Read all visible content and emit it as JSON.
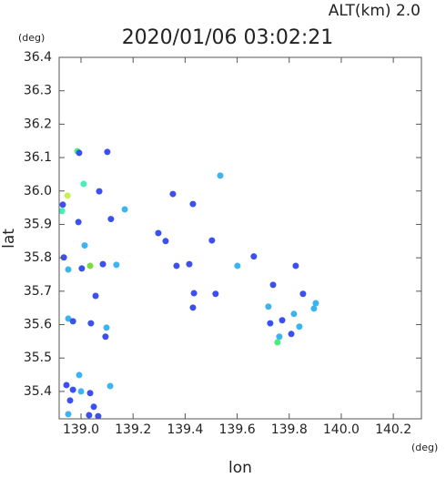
{
  "chart_data": {
    "type": "scatter",
    "title": "2020/01/06 03:02:21",
    "subtitle": "ALT(km)  2.0",
    "x_unit": "(deg)",
    "y_unit": "(deg)",
    "xlabel": "lon",
    "ylabel": "lat",
    "xlim": [
      138.916,
      140.308
    ],
    "ylim": [
      35.318,
      36.4
    ],
    "xticks": [
      {
        "value": 139,
        "label": "139.0"
      },
      139.2,
      139.4,
      139.6,
      139.8,
      {
        "value": 140,
        "label": "140.0"
      },
      140.2
    ],
    "yticks": [
      35.4,
      35.5,
      35.6,
      35.7,
      35.8,
      35.9,
      {
        "value": 36,
        "label": "36.0"
      },
      36.1,
      36.2,
      36.3,
      36.4
    ],
    "x": [
      138.986,
      138.993,
      139.101,
      138.948,
      139.01,
      139.07,
      138.93,
      138.927,
      139.168,
      139.115,
      139.014,
      138.99,
      138.934,
      139.035,
      139.003,
      139.084,
      138.951,
      139.136,
      139.056,
      138.951,
      138.969,
      139.098,
      139.094,
      139.038,
      139.353,
      139.43,
      139.535,
      139.297,
      139.325,
      139.367,
      139.416,
      139.503,
      139.517,
      139.434,
      139.601,
      139.664,
      139.738,
      139.853,
      139.902,
      139.895,
      139.72,
      139.727,
      139.818,
      139.839,
      139.773,
      139.762,
      139.755,
      139.808,
      139.825,
      139.43,
      138.993,
      138.969,
      138.944,
      138.958,
      139.0,
      139.035,
      139.112,
      139.049,
      139.031,
      139.066,
      138.951
    ],
    "y": [
      36.119,
      36.114,
      36.117,
      35.986,
      36.021,
      35.999,
      35.959,
      35.94,
      35.945,
      35.916,
      35.837,
      35.907,
      35.801,
      35.776,
      35.768,
      35.781,
      35.765,
      35.779,
      35.686,
      35.618,
      35.61,
      35.591,
      35.564,
      35.604,
      35.991,
      35.961,
      36.046,
      35.874,
      35.85,
      35.776,
      35.781,
      35.852,
      35.692,
      35.694,
      35.776,
      35.804,
      35.719,
      35.692,
      35.664,
      35.648,
      35.654,
      35.604,
      35.632,
      35.594,
      35.613,
      35.564,
      35.547,
      35.572,
      35.776,
      35.651,
      35.449,
      35.405,
      35.419,
      35.373,
      35.4,
      35.395,
      35.416,
      35.354,
      35.329,
      35.326,
      35.332
    ],
    "colors": [
      "#46f078",
      "#3c50f0",
      "#3c50f0",
      "#c8f050",
      "#46f0b4",
      "#3c50f0",
      "#3c50f0",
      "#46f0b4",
      "#3cb4f0",
      "#3c50f0",
      "#3cb4f0",
      "#3c50f0",
      "#3c50f0",
      "#78dc3c",
      "#3c50f0",
      "#3c50f0",
      "#3cb4f0",
      "#3cb4f0",
      "#3c50f0",
      "#3cb4f0",
      "#3c50f0",
      "#3cb4f0",
      "#3c50f0",
      "#3c50f0",
      "#3c50f0",
      "#3c50f0",
      "#3cb4f0",
      "#3c50f0",
      "#3c50f0",
      "#3c50f0",
      "#3c50f0",
      "#3c50f0",
      "#3c50f0",
      "#3c50f0",
      "#3cb4f0",
      "#3c50f0",
      "#3c50f0",
      "#3c50f0",
      "#3cb4f0",
      "#3cb4f0",
      "#3cb4f0",
      "#3c50f0",
      "#3cb4f0",
      "#3cb4f0",
      "#3c50f0",
      "#3cb4f0",
      "#46f078",
      "#3c50f0",
      "#3c50f0",
      "#3c50f0",
      "#3cb4f0",
      "#3c50f0",
      "#3c50f0",
      "#3c50f0",
      "#3cb4f0",
      "#3c50f0",
      "#3cb4f0",
      "#3c50f0",
      "#3c50f0",
      "#3c50f0",
      "#3cb4f0"
    ]
  }
}
